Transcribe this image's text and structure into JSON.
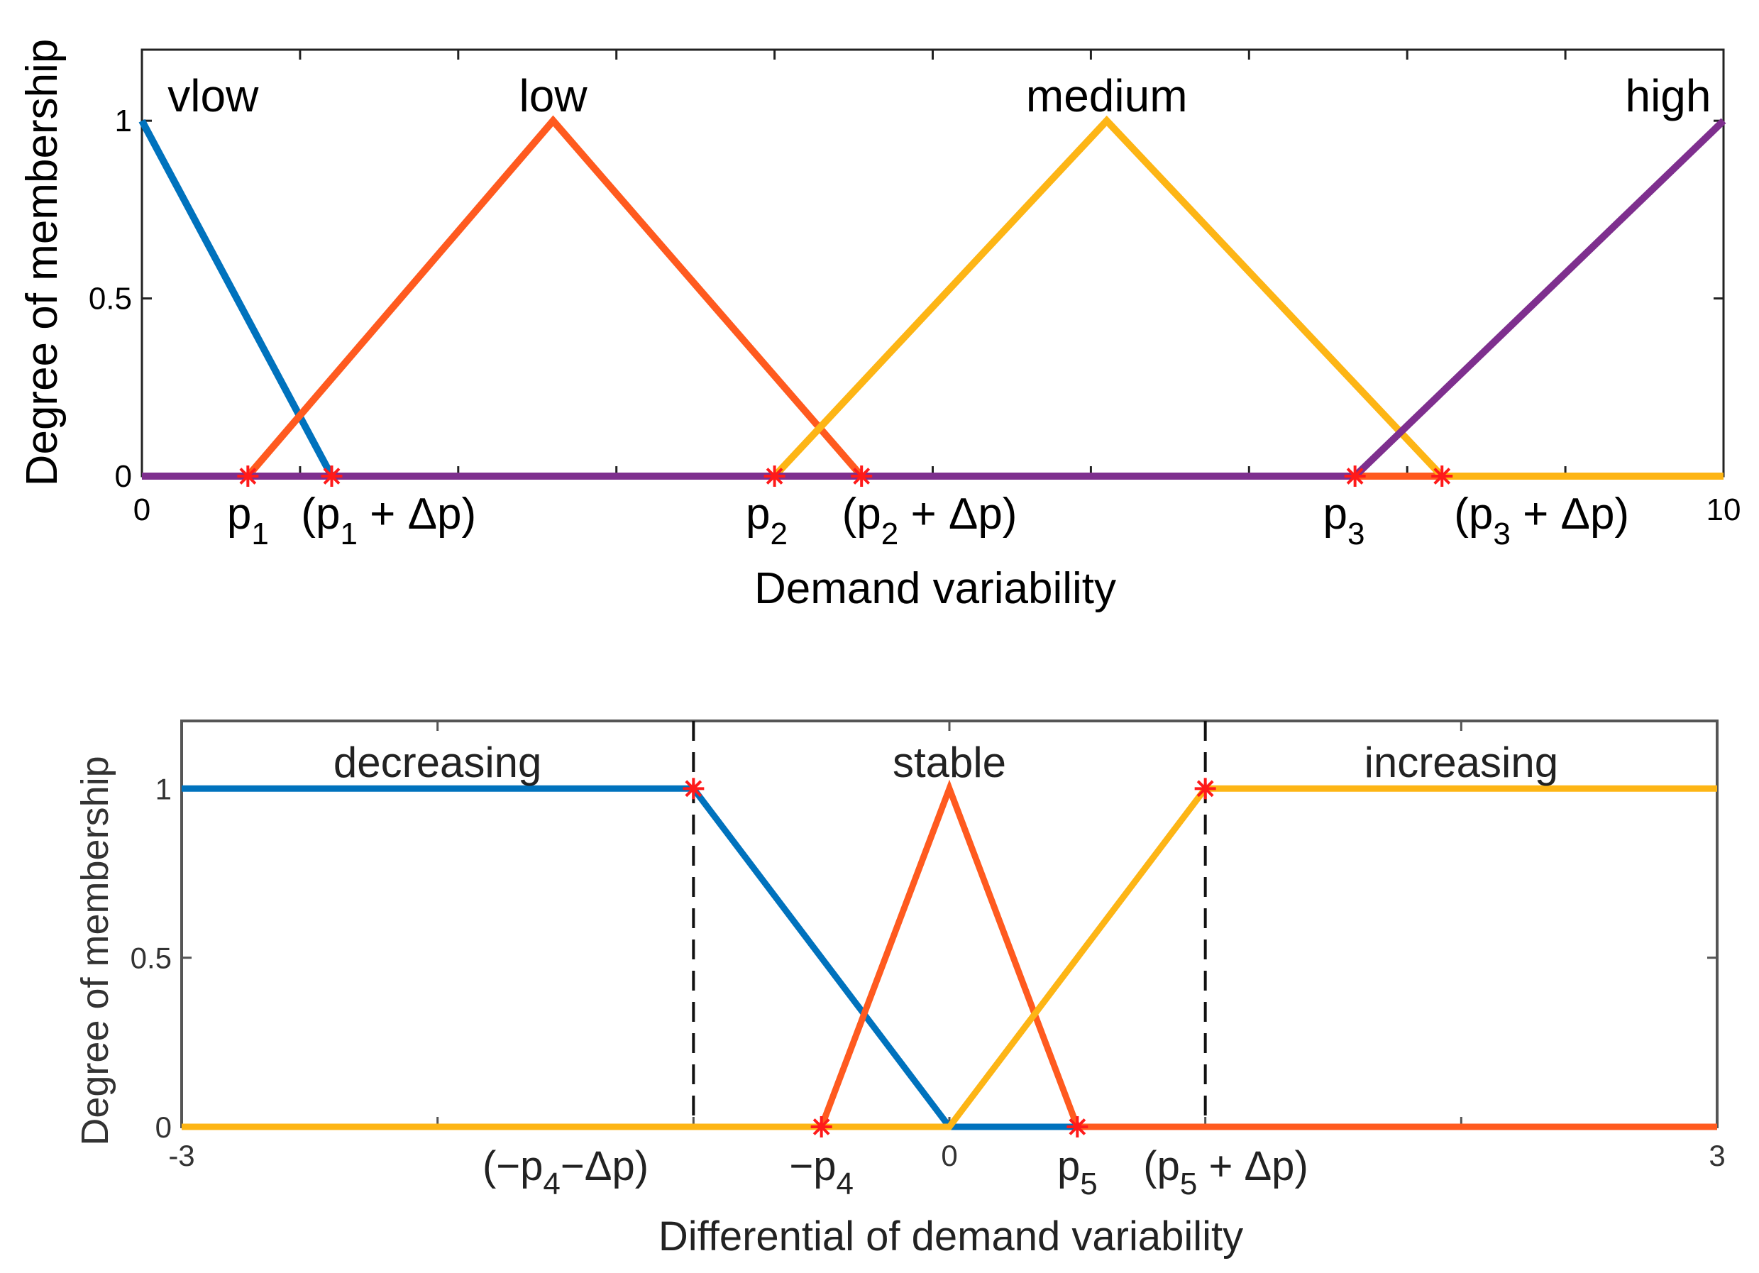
{
  "chart_data": [
    {
      "type": "line",
      "subtype": "fuzzy-membership-functions",
      "title": "",
      "xlabel": "Demand variability",
      "ylabel": "Degree of membership",
      "xlim": [
        0,
        10
      ],
      "ylim": [
        0,
        1.2
      ],
      "x_ticks": [
        {
          "value": 0,
          "label": "0"
        },
        {
          "value": 10,
          "label": "10"
        }
      ],
      "y_ticks": [
        {
          "value": 0,
          "label": "0"
        },
        {
          "value": 0.5,
          "label": "0.5"
        },
        {
          "value": 1,
          "label": "1"
        }
      ],
      "series": [
        {
          "name": "vlow",
          "color": "#0072BD",
          "x": [
            0,
            1.2,
            10
          ],
          "y": [
            1,
            0,
            0
          ]
        },
        {
          "name": "low",
          "color": "#FF5A1F",
          "x": [
            0,
            0.67,
            2.6,
            4.55,
            10
          ],
          "y": [
            0,
            0,
            1,
            0,
            0
          ]
        },
        {
          "name": "medium",
          "color": "#FDB515",
          "x": [
            0,
            4,
            6.1,
            8.22,
            10
          ],
          "y": [
            0,
            0,
            1,
            0,
            0
          ]
        },
        {
          "name": "high",
          "color": "#7E2F8E",
          "x": [
            0,
            7.67,
            10
          ],
          "y": [
            0,
            0,
            1
          ]
        }
      ],
      "class_labels": [
        {
          "text": "vlow",
          "x": 0.45
        },
        {
          "text": "low",
          "x": 2.6
        },
        {
          "text": "medium",
          "x": 6.1
        },
        {
          "text": "high",
          "x": 9.65
        }
      ],
      "markers": [
        0.67,
        1.2,
        4.0,
        4.55,
        7.67,
        8.22
      ],
      "marker_color": "#FF1A1A",
      "annotations": [
        {
          "main": "p",
          "sub": "1",
          "x": 0.67,
          "anchor": "middle"
        },
        {
          "prefix": "(",
          "main": "p",
          "sub": "1",
          "suffix": " + Δp)",
          "x": 1.56,
          "anchor": "middle"
        },
        {
          "main": "p",
          "sub": "2",
          "x": 3.95,
          "anchor": "middle"
        },
        {
          "prefix": "(",
          "main": "p",
          "sub": "2",
          "suffix": " + Δp)",
          "x": 4.98,
          "anchor": "middle"
        },
        {
          "main": "p",
          "sub": "3",
          "x": 7.6,
          "anchor": "middle"
        },
        {
          "prefix": "(",
          "main": "p",
          "sub": "3",
          "suffix": " + Δp)",
          "x": 8.85,
          "anchor": "middle"
        }
      ]
    },
    {
      "type": "line",
      "subtype": "fuzzy-membership-functions",
      "title": "",
      "xlabel": "Differential of demand variability",
      "ylabel": "Degree of membership",
      "xlim": [
        -3,
        3
      ],
      "ylim": [
        0,
        1.2
      ],
      "x_ticks": [
        {
          "value": -3,
          "label": "-3"
        },
        {
          "value": 0,
          "label": "0"
        },
        {
          "value": 3,
          "label": "3"
        }
      ],
      "y_ticks": [
        {
          "value": 0,
          "label": "0"
        },
        {
          "value": 0.5,
          "label": "0.5"
        },
        {
          "value": 1,
          "label": "1"
        }
      ],
      "series": [
        {
          "name": "decreasing",
          "color": "#0072BD",
          "x": [
            -3,
            -1,
            0,
            0.5
          ],
          "y": [
            1,
            1,
            0,
            0
          ]
        },
        {
          "name": "stable",
          "color": "#FF5A1F",
          "x": [
            -3,
            -0.5,
            0,
            0.5,
            3
          ],
          "y": [
            0,
            0,
            1,
            0,
            0
          ]
        },
        {
          "name": "increasing",
          "color": "#FDB515",
          "x": [
            -3,
            0,
            1,
            3
          ],
          "y": [
            0,
            0,
            1,
            1
          ]
        }
      ],
      "class_labels": [
        {
          "text": "decreasing",
          "x": -2.0
        },
        {
          "text": "stable",
          "x": 0.0
        },
        {
          "text": "increasing",
          "x": 2.0
        }
      ],
      "markers": [
        [
          -1,
          1
        ],
        [
          -0.5,
          0
        ],
        [
          0.5,
          0
        ],
        [
          1,
          1
        ]
      ],
      "marker_color": "#FF1A1A",
      "dashed_verticals": [
        -1,
        1
      ],
      "annotations": [
        {
          "prefix": "(−",
          "main": "p",
          "sub": "4",
          "suffix": "−Δp)",
          "x": -1.5,
          "anchor": "middle"
        },
        {
          "prefix": "−",
          "main": "p",
          "sub": "4",
          "suffix": "",
          "x": -0.5,
          "anchor": "middle"
        },
        {
          "main": "p",
          "sub": "5",
          "x": 0.5,
          "anchor": "middle"
        },
        {
          "prefix": "(",
          "main": "p",
          "sub": "5",
          "suffix": " + Δp)",
          "x": 1.08,
          "anchor": "middle"
        }
      ]
    }
  ]
}
